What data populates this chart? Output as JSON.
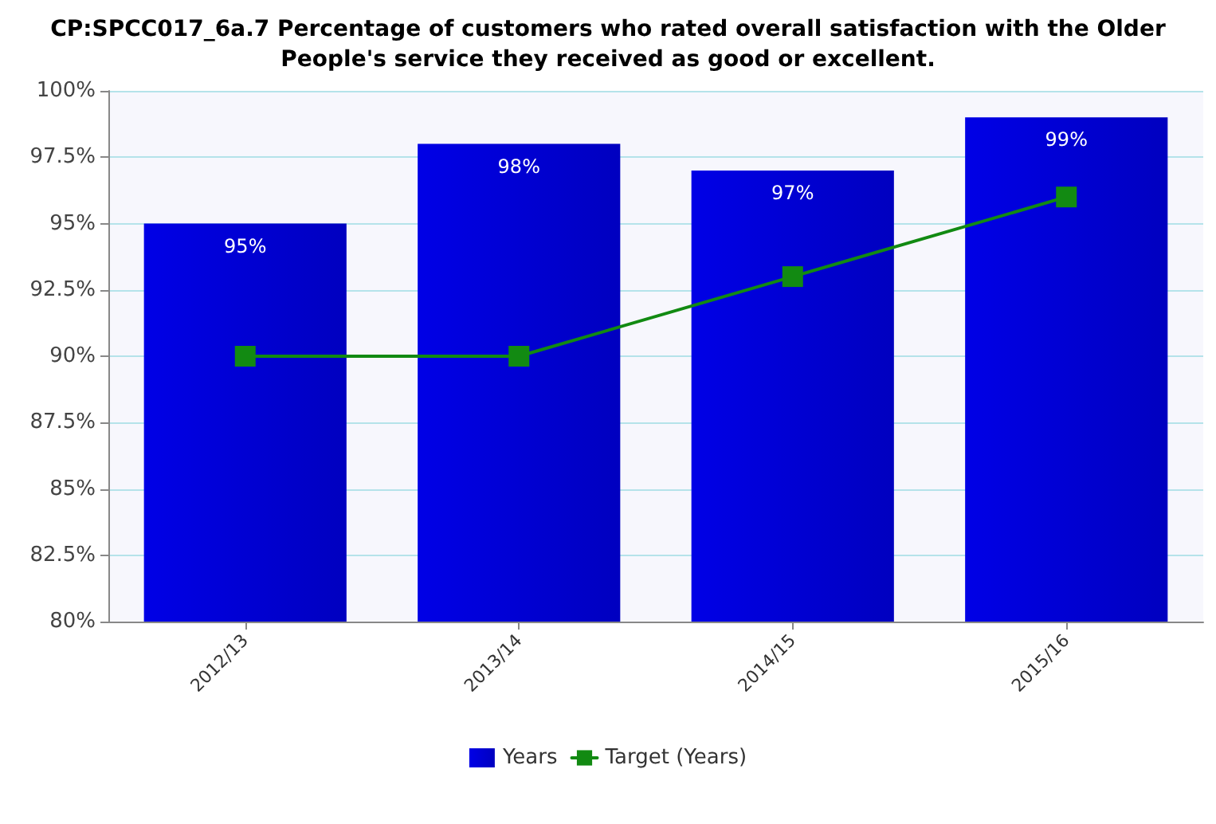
{
  "chart_data": {
    "type": "bar",
    "title": "CP:SPCC017_6a.7 Percentage of customers who rated overall satisfaction with the Older\nPeople's service they received as good or excellent.",
    "categories": [
      "2012/13",
      "2013/14",
      "2014/15",
      "2015/16"
    ],
    "series": [
      {
        "name": "Years",
        "color": "#0000e6",
        "values": [
          95,
          98,
          97,
          99
        ],
        "value_labels": [
          "95%",
          "98%",
          "97%",
          "99%"
        ]
      },
      {
        "name": "Target (Years)",
        "type": "line",
        "color": "#128a12",
        "values": [
          90,
          90,
          93,
          96
        ],
        "marker": "square",
        "line_style": "solid"
      }
    ],
    "ylim": [
      80,
      100
    ],
    "yticks": [
      {
        "value": 80,
        "label": "80%"
      },
      {
        "value": 82.5,
        "label": "82.5%"
      },
      {
        "value": 85,
        "label": "85%"
      },
      {
        "value": 87.5,
        "label": "87.5%"
      },
      {
        "value": 90,
        "label": "90%"
      },
      {
        "value": 92.5,
        "label": "92.5%"
      },
      {
        "value": 95,
        "label": "95%"
      },
      {
        "value": 97.5,
        "label": "97.5%"
      },
      {
        "value": 100,
        "label": "100%"
      }
    ],
    "grid": "y",
    "legend": "bottom"
  }
}
